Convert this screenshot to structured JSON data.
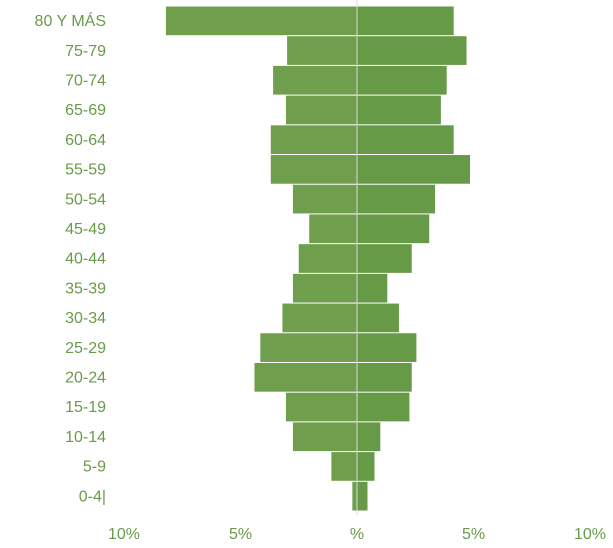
{
  "chart_data": {
    "type": "pyramid",
    "categories": [
      "80 Y MÁS",
      "75-79",
      "70-74",
      "65-69",
      "60-64",
      "55-59",
      "50-54",
      "45-49",
      "40-44",
      "35-39",
      "30-34",
      "25-29",
      "20-24",
      "15-19",
      "10-14",
      "5-9",
      "0-4|"
    ],
    "series": [
      {
        "color": "#6f9f4d",
        "values": [
          -8.2,
          -3.0,
          -3.6,
          -3.05,
          -3.7,
          -3.7,
          -2.75,
          -2.05,
          -2.5,
          -2.75,
          -3.2,
          -4.15,
          -4.4,
          -3.05,
          -2.75,
          -1.1,
          -0.2
        ]
      },
      {
        "color": "#679a47",
        "values": [
          4.15,
          4.7,
          3.85,
          3.6,
          4.15,
          4.85,
          3.35,
          3.1,
          2.35,
          1.3,
          1.8,
          2.55,
          2.35,
          2.25,
          1.0,
          0.75,
          0.45
        ]
      }
    ],
    "xlim": [
      -10,
      10
    ],
    "xticks": [
      {
        "value": -10,
        "label": "10%"
      },
      {
        "value": -5,
        "label": "5%"
      },
      {
        "value": 0,
        "label": "%"
      },
      {
        "value": 5,
        "label": "5%"
      },
      {
        "value": 10,
        "label": "10%"
      }
    ]
  }
}
